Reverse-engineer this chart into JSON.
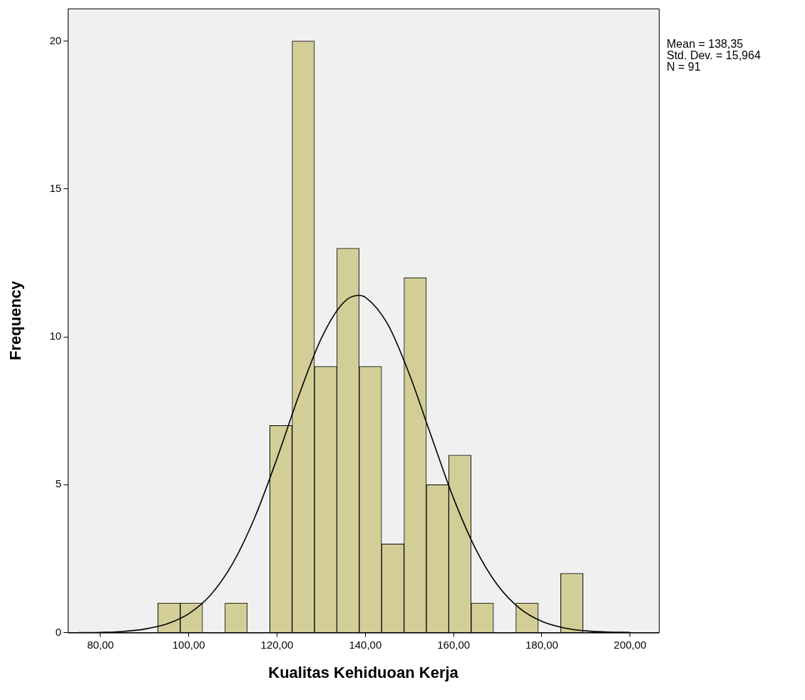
{
  "chart_data": {
    "type": "histogram",
    "xlabel": "Kualitas Kehiduoan Kerja",
    "ylabel": "Frequency",
    "xlim": [
      72.6,
      206.5
    ],
    "xticks": [
      {
        "value": 80,
        "label": "80,00"
      },
      {
        "value": 100,
        "label": "100,00"
      },
      {
        "value": 120,
        "label": "120,00"
      },
      {
        "value": 140,
        "label": "140,00"
      },
      {
        "value": 160,
        "label": "160,00"
      },
      {
        "value": 180,
        "label": "180,00"
      },
      {
        "value": 200,
        "label": "200,00"
      }
    ],
    "ylim": [
      0,
      21.1
    ],
    "yticks": [
      0,
      5,
      10,
      15,
      20
    ],
    "grid": false,
    "legend": false,
    "annotations": [
      "Mean = 138,35",
      "Std. Dev. = 15,964",
      "N = 91"
    ],
    "series": [
      {
        "type": "histogram",
        "color": "#d3ce97",
        "bins": [
          93.0,
          98.07,
          103.14,
          108.21,
          113.28,
          118.35,
          123.42,
          128.49,
          133.56,
          138.63,
          143.7,
          148.77,
          153.84,
          158.91,
          163.98,
          169.05,
          174.12,
          179.19,
          184.26,
          189.33
        ],
        "values": [
          1,
          1,
          0,
          1,
          0,
          7,
          20,
          9,
          13,
          9,
          3,
          12,
          5,
          6,
          1,
          0,
          1,
          0,
          2
        ]
      },
      {
        "type": "line",
        "color": "#000000",
        "x": [
          75,
          80,
          85,
          90,
          95,
          100,
          105,
          110,
          115,
          120,
          125,
          130,
          135,
          138.35,
          140,
          145,
          150,
          155,
          160,
          165,
          170,
          175,
          180,
          185,
          190,
          195,
          200
        ],
        "values": [
          0,
          0.01,
          0.04,
          0.12,
          0.29,
          0.64,
          1.28,
          2.35,
          3.91,
          5.89,
          8.04,
          9.94,
          11.15,
          11.4,
          11.34,
          10.45,
          8.73,
          6.62,
          4.54,
          2.83,
          1.6,
          0.82,
          0.38,
          0.16,
          0.06,
          0.02,
          0.01
        ]
      }
    ]
  }
}
